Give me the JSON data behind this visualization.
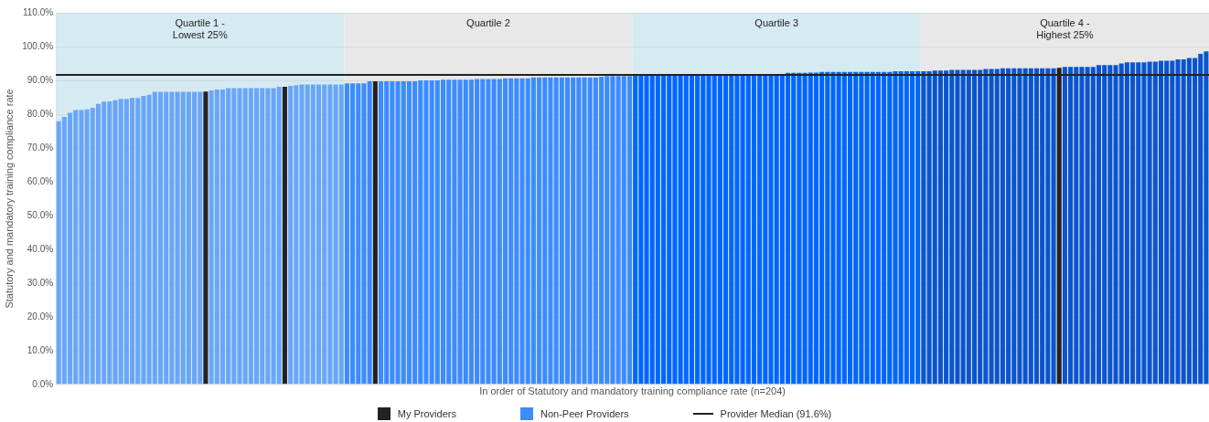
{
  "chart_data": {
    "type": "bar",
    "xlabel": "In order of Statutory and mandatory training compliance rate (n=204)",
    "ylabel": "Statutory and mandatory training compliance rate",
    "categories": [
      null,
      null,
      null,
      null,
      null,
      null,
      null,
      null,
      null,
      null,
      null,
      null,
      null,
      null,
      null,
      null,
      null,
      null,
      null,
      null,
      null,
      null,
      null,
      null,
      null,
      null,
      null,
      null,
      null,
      null,
      null,
      null,
      null,
      null,
      null,
      null,
      null,
      null,
      null,
      null,
      null,
      null,
      null,
      null,
      null,
      null,
      null,
      null,
      null,
      null,
      null,
      null,
      null,
      null,
      null,
      null,
      null,
      null,
      null,
      null,
      null,
      null,
      null,
      null,
      null,
      null,
      null,
      null,
      null,
      null,
      null,
      null,
      null,
      null,
      null,
      null,
      null,
      null,
      null,
      null,
      null,
      null,
      null,
      null,
      null,
      null,
      null,
      null,
      null,
      null,
      null,
      null,
      null,
      null,
      null,
      null,
      null,
      null,
      null,
      null,
      null,
      null,
      null,
      null,
      null,
      null,
      null,
      null,
      null,
      null,
      null,
      null,
      null,
      null,
      null,
      null,
      null,
      null,
      null,
      null,
      null,
      null,
      null,
      null,
      null,
      null,
      null,
      null,
      null,
      null,
      null,
      null,
      null,
      null,
      null,
      null,
      null,
      null,
      null,
      null,
      null,
      null,
      null,
      null,
      null,
      null,
      null,
      null,
      null,
      null,
      null,
      null,
      null,
      null,
      null,
      null,
      null,
      null,
      null,
      null,
      null,
      null,
      null,
      null,
      null,
      null,
      null,
      null,
      null,
      null,
      null,
      null,
      null,
      null,
      null,
      null,
      null,
      null,
      null,
      null,
      null,
      null,
      null,
      null,
      null,
      null,
      null,
      null,
      null,
      null,
      null,
      null,
      null,
      null,
      null,
      null,
      null,
      null,
      null,
      null,
      null,
      null,
      null,
      null
    ],
    "series": [
      {
        "name": "My Providers",
        "color": "#222222",
        "values": [
          null,
          null,
          null,
          null,
          null,
          null,
          null,
          null,
          null,
          null,
          null,
          null,
          null,
          null,
          null,
          null,
          null,
          null,
          null,
          null,
          null,
          null,
          null,
          null,
          null,
          null,
          86.7,
          null,
          null,
          null,
          null,
          null,
          null,
          null,
          null,
          null,
          null,
          null,
          null,
          null,
          88.1,
          null,
          null,
          null,
          null,
          null,
          null,
          null,
          null,
          null,
          null,
          null,
          null,
          null,
          null,
          null,
          89.7,
          null,
          null,
          null,
          null,
          null,
          null,
          null,
          null,
          null,
          null,
          null,
          null,
          null,
          null,
          null,
          null,
          null,
          null,
          null,
          null,
          null,
          null,
          null,
          null,
          null,
          null,
          null,
          null,
          null,
          null,
          null,
          null,
          null,
          null,
          null,
          null,
          null,
          null,
          null,
          null,
          null,
          null,
          null,
          null,
          null,
          null,
          null,
          null,
          null,
          null,
          null,
          null,
          null,
          null,
          null,
          null,
          null,
          null,
          null,
          null,
          null,
          null,
          null,
          null,
          null,
          null,
          null,
          null,
          null,
          null,
          null,
          null,
          null,
          null,
          null,
          null,
          null,
          null,
          null,
          null,
          null,
          null,
          null,
          null,
          null,
          null,
          null,
          null,
          null,
          null,
          null,
          null,
          null,
          null,
          null,
          null,
          null,
          null,
          null,
          null,
          null,
          null,
          null,
          null,
          null,
          null,
          null,
          null,
          null,
          null,
          null,
          null,
          null,
          null,
          null,
          null,
          null,
          null,
          null,
          null,
          93.7,
          null,
          null,
          null,
          null,
          null,
          null,
          null,
          null,
          null,
          null,
          null,
          null,
          null,
          null,
          null,
          null,
          null,
          null,
          null,
          null,
          null,
          null,
          null,
          null,
          null,
          null
        ]
      },
      {
        "name": "Non-Peer Providers",
        "color": "#3a8cff",
        "values": [
          77.9,
          79.2,
          80.4,
          81.2,
          81.2,
          81.4,
          81.9,
          83.0,
          83.7,
          83.8,
          84.1,
          84.5,
          84.5,
          84.8,
          84.8,
          85.4,
          85.7,
          86.6,
          86.6,
          86.6,
          86.6,
          86.6,
          86.6,
          86.6,
          86.6,
          86.6,
          null,
          87.0,
          87.3,
          87.3,
          87.7,
          87.7,
          87.7,
          87.7,
          87.7,
          87.7,
          87.7,
          87.7,
          87.7,
          88.1,
          null,
          88.4,
          88.6,
          88.8,
          88.8,
          88.8,
          88.8,
          88.8,
          88.8,
          88.8,
          88.8,
          89.1,
          89.1,
          89.1,
          89.1,
          89.7,
          null,
          89.7,
          89.7,
          89.7,
          89.7,
          89.7,
          89.7,
          89.7,
          90.0,
          90.0,
          90.0,
          90.0,
          90.2,
          90.2,
          90.2,
          90.2,
          90.2,
          90.2,
          90.4,
          90.4,
          90.4,
          90.4,
          90.4,
          90.6,
          90.6,
          90.6,
          90.6,
          90.6,
          90.9,
          90.9,
          90.9,
          90.9,
          90.9,
          90.9,
          90.9,
          90.9,
          90.9,
          90.9,
          90.9,
          90.9,
          91.1,
          91.3,
          91.3,
          91.3,
          91.3,
          91.3,
          91.5,
          91.5,
          91.5,
          91.5,
          91.5,
          91.5,
          91.5,
          91.5,
          91.5,
          91.5,
          91.5,
          91.5,
          91.5,
          91.5,
          91.5,
          91.5,
          91.5,
          91.5,
          91.5,
          91.5,
          91.5,
          91.5,
          91.5,
          91.8,
          91.8,
          91.8,
          91.8,
          92.2,
          92.2,
          92.2,
          92.2,
          92.3,
          92.3,
          92.5,
          92.5,
          92.5,
          92.5,
          92.5,
          92.5,
          92.5,
          92.5,
          92.5,
          92.5,
          92.5,
          92.5,
          92.5,
          92.7,
          92.7,
          92.7,
          92.7,
          92.7,
          92.7,
          92.7,
          92.9,
          92.9,
          92.9,
          93.1,
          93.1,
          93.1,
          93.1,
          93.1,
          93.1,
          93.4,
          93.4,
          93.4,
          93.6,
          93.6,
          93.6,
          93.6,
          93.6,
          93.6,
          93.6,
          93.6,
          93.6,
          93.6,
          null,
          94.0,
          94.0,
          94.0,
          94.0,
          94.0,
          94.0,
          94.5,
          94.5,
          94.5,
          94.5,
          95.0,
          95.3,
          95.3,
          95.3,
          95.3,
          95.5,
          95.5,
          95.8,
          95.8,
          95.8,
          96.2,
          96.2,
          96.6,
          96.6,
          97.8,
          98.6
        ],
        "colors": [
          "#6aa6f8",
          "#6aa6f8",
          "#6aa6f8",
          "#6aa6f8",
          "#6aa6f8",
          "#6aa6f8",
          "#6aa6f8",
          "#6aa6f8",
          "#6aa6f8",
          "#6aa6f8",
          "#6aa6f8",
          "#6aa6f8",
          "#6aa6f8",
          "#6aa6f8",
          "#6aa6f8",
          "#6aa6f8",
          "#6aa6f8",
          "#6aa6f8",
          "#6aa6f8",
          "#6aa6f8",
          "#6aa6f8",
          "#6aa6f8",
          "#6aa6f8",
          "#6aa6f8",
          "#6aa6f8",
          "#6aa6f8",
          "#6aa6f8",
          "#6aa6f8",
          "#6aa6f8",
          "#6aa6f8",
          "#6aa6f8",
          "#6aa6f8",
          "#6aa6f8",
          "#6aa6f8",
          "#6aa6f8",
          "#6aa6f8",
          "#6aa6f8",
          "#6aa6f8",
          "#6aa6f8",
          "#6aa6f8",
          "#6aa6f8",
          "#6aa6f8",
          "#6aa6f8",
          "#6aa6f8",
          "#6aa6f8",
          "#6aa6f8",
          "#6aa6f8",
          "#6aa6f8",
          "#6aa6f8",
          "#6aa6f8",
          "#6aa6f8",
          "#3a8cff",
          "#3a8cff",
          "#3a8cff",
          "#3a8cff",
          "#3a8cff",
          "#3a8cff",
          "#3a8cff",
          "#3a8cff",
          "#3a8cff",
          "#3a8cff",
          "#3a8cff",
          "#3a8cff",
          "#3a8cff",
          "#3a8cff",
          "#3a8cff",
          "#3a8cff",
          "#3a8cff",
          "#3a8cff",
          "#3a8cff",
          "#3a8cff",
          "#3a8cff",
          "#3a8cff",
          "#3a8cff",
          "#3a8cff",
          "#3a8cff",
          "#3a8cff",
          "#3a8cff",
          "#3a8cff",
          "#3a8cff",
          "#3a8cff",
          "#3a8cff",
          "#3a8cff",
          "#3a8cff",
          "#3a8cff",
          "#3a8cff",
          "#3a8cff",
          "#3a8cff",
          "#3a8cff",
          "#3a8cff",
          "#3a8cff",
          "#3a8cff",
          "#3a8cff",
          "#3a8cff",
          "#3a8cff",
          "#3a8cff",
          "#3a8cff",
          "#3a8cff",
          "#3a8cff",
          "#3a8cff",
          "#3a8cff",
          "#3a8cff",
          "#0066ff",
          "#0066ff",
          "#0066ff",
          "#0066ff",
          "#0066ff",
          "#0066ff",
          "#0066ff",
          "#0066ff",
          "#0066ff",
          "#0066ff",
          "#0066ff",
          "#0066ff",
          "#0066ff",
          "#0066ff",
          "#0066ff",
          "#0066ff",
          "#0066ff",
          "#0066ff",
          "#0066ff",
          "#0066ff",
          "#0066ff",
          "#0066ff",
          "#0066ff",
          "#0066ff",
          "#0066ff",
          "#0066ff",
          "#0066ff",
          "#0066ff",
          "#0066ff",
          "#0066ff",
          "#0066ff",
          "#0066ff",
          "#0066ff",
          "#0066ff",
          "#0066ff",
          "#0066ff",
          "#0066ff",
          "#0066ff",
          "#0066ff",
          "#0066ff",
          "#0066ff",
          "#0066ff",
          "#0066ff",
          "#0066ff",
          "#0066ff",
          "#0066ff",
          "#0066ff",
          "#0066ff",
          "#0066ff",
          "#0066ff",
          "#0066ff",
          "#0a55d0",
          "#0a55d0",
          "#0a55d0",
          "#0a55d0",
          "#0a55d0",
          "#0a55d0",
          "#0a55d0",
          "#0a55d0",
          "#0a55d0",
          "#0a55d0",
          "#0a55d0",
          "#0a55d0",
          "#0a55d0",
          "#0a55d0",
          "#0a55d0",
          "#0a55d0",
          "#0a55d0",
          "#0a55d0",
          "#0a55d0",
          "#0a55d0",
          "#0a55d0",
          "#0a55d0",
          "#0a55d0",
          "#0a55d0",
          "#0a55d0",
          "#0a55d0",
          "#0a55d0",
          "#0a55d0",
          "#0a55d0",
          "#0a55d0",
          "#0a55d0",
          "#0a55d0",
          "#0a55d0",
          "#0a55d0",
          "#0a55d0",
          "#0a55d0",
          "#0a55d0",
          "#0a55d0",
          "#0a55d0",
          "#0a55d0",
          "#0a55d0",
          "#0a55d0",
          "#0a55d0",
          "#0a55d0",
          "#0a55d0",
          "#0a55d0",
          "#0a55d0",
          "#0a55d0",
          "#0a55d0",
          "#0a55d0",
          "#0a55d0"
        ]
      }
    ],
    "ylim": [
      0,
      110
    ],
    "yticks": [
      {
        "value": 0,
        "label": "0.0%"
      },
      {
        "value": 10,
        "label": "10.0%"
      },
      {
        "value": 20,
        "label": "20.0%"
      },
      {
        "value": 30,
        "label": "30.0%"
      },
      {
        "value": 40,
        "label": "40.0%"
      },
      {
        "value": 50,
        "label": "50.0%"
      },
      {
        "value": 60,
        "label": "60.0%"
      },
      {
        "value": 70,
        "label": "70.0%"
      },
      {
        "value": 80,
        "label": "80.0%"
      },
      {
        "value": 90,
        "label": "90.0%"
      },
      {
        "value": 100,
        "label": "100.0%"
      },
      {
        "value": 110,
        "label": "110.0%"
      }
    ],
    "grid": "y",
    "legend": "bottom",
    "tick_labels": "y",
    "ref_lines": [
      {
        "axis": "y",
        "value": 91.6,
        "label": "Provider Median (91.6%)",
        "color": "#222222"
      }
    ],
    "annotations": [
      "Quartile 1 -\nLowest 25%",
      "Quartile 2",
      "Quartile 3",
      "Quartile 4 -\nHighest 25%"
    ]
  }
}
